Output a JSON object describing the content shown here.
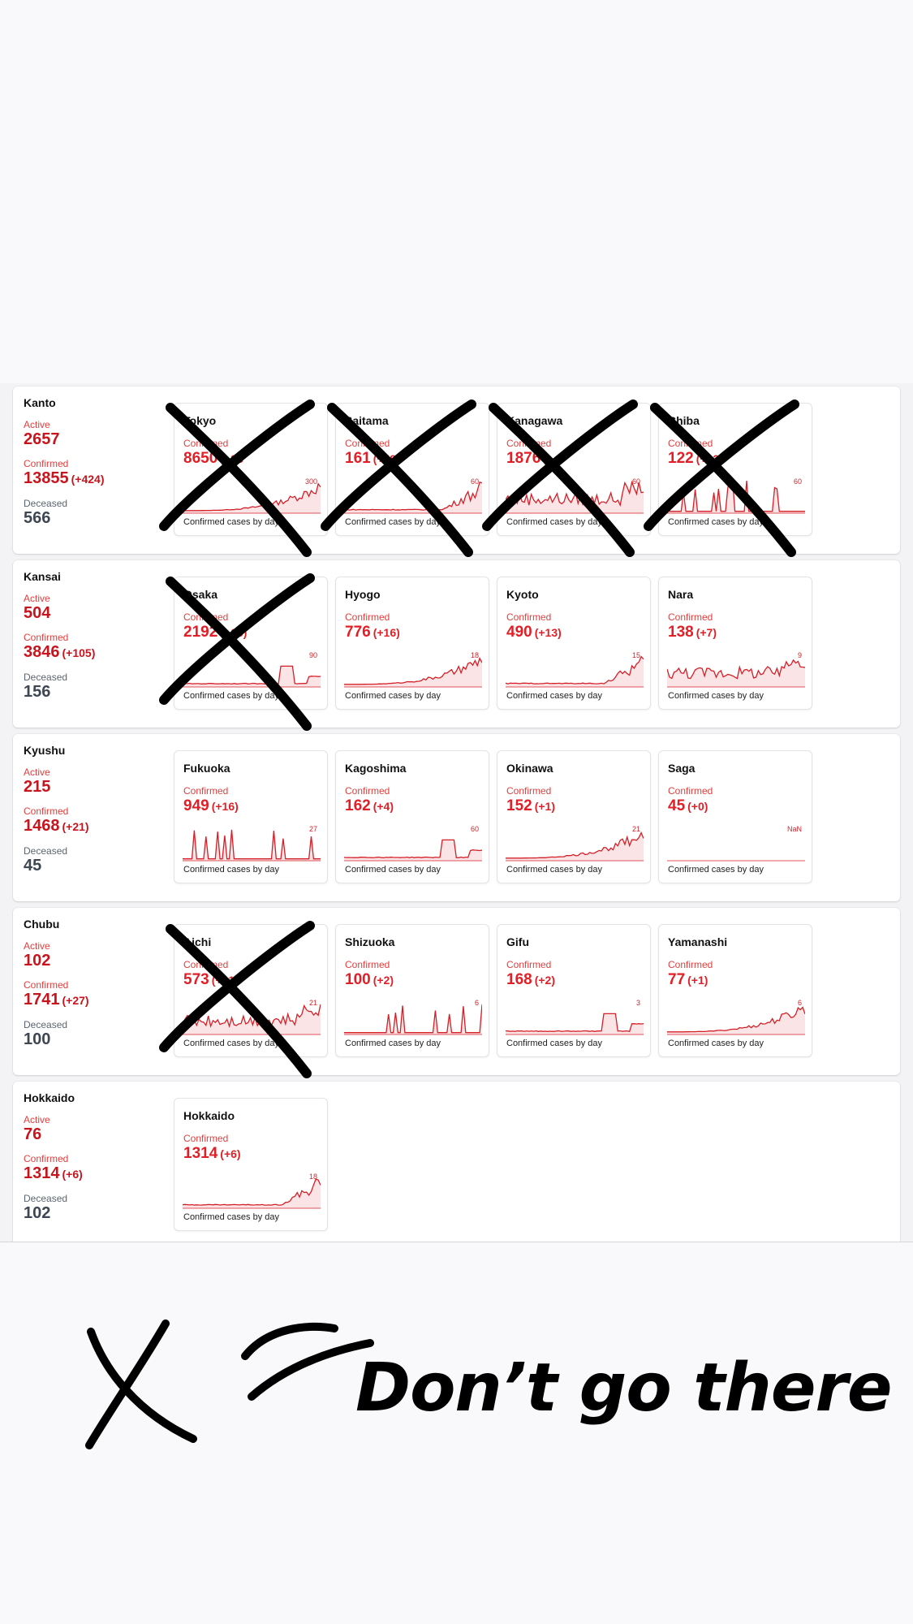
{
  "caption_label": "Confirmed cases by day",
  "confirmed_label": "Confirmed",
  "tagline": "Don’t go there",
  "colors": {
    "accent": "#e21f26",
    "dark_value": "#3d4652",
    "ink": "#000000"
  },
  "regions": [
    {
      "name": "Kanto",
      "active": {
        "label": "Active",
        "value": "2657"
      },
      "confirmed": {
        "label": "Confirmed",
        "value": "13855",
        "delta": "(+424)"
      },
      "deceased": {
        "label": "Deceased",
        "value": "566"
      },
      "prefectures": [
        {
          "name": "Tokyo",
          "confirmed": "8650",
          "delta": "(+28",
          "ymax": "300",
          "crossed": true
        },
        {
          "name": "Saitama",
          "confirmed": "161",
          "delta": "(+49)",
          "ymax": "60",
          "crossed": true
        },
        {
          "name": "Kanagawa",
          "confirmed": "1876",
          "delta": "(+4",
          "ymax": "60",
          "crossed": true
        },
        {
          "name": "Chiba",
          "confirmed": "122",
          "delta": "(+32)",
          "ymax": "60",
          "crossed": true
        }
      ]
    },
    {
      "name": "Kansai",
      "active": {
        "label": "Active",
        "value": "504"
      },
      "confirmed": {
        "label": "Confirmed",
        "value": "3846",
        "delta": "(+105)"
      },
      "deceased": {
        "label": "Deceased",
        "value": "156"
      },
      "prefectures": [
        {
          "name": "Osaka",
          "confirmed": "2192",
          "delta": "(+66)",
          "ymax": "90",
          "crossed": true
        },
        {
          "name": "Hyogo",
          "confirmed": "776",
          "delta": "(+16)",
          "ymax": "18",
          "crossed": false
        },
        {
          "name": "Kyoto",
          "confirmed": "490",
          "delta": "(+13)",
          "ymax": "15",
          "crossed": false
        },
        {
          "name": "Nara",
          "confirmed": "138",
          "delta": "(+7)",
          "ymax": "9",
          "crossed": false
        }
      ]
    },
    {
      "name": "Kyushu",
      "active": {
        "label": "Active",
        "value": "215"
      },
      "confirmed": {
        "label": "Confirmed",
        "value": "1468",
        "delta": "(+21)"
      },
      "deceased": {
        "label": "Deceased",
        "value": "45"
      },
      "prefectures": [
        {
          "name": "Fukuoka",
          "confirmed": "949",
          "delta": "(+16)",
          "ymax": "27",
          "crossed": false
        },
        {
          "name": "Kagoshima",
          "confirmed": "162",
          "delta": "(+4)",
          "ymax": "60",
          "crossed": false
        },
        {
          "name": "Okinawa",
          "confirmed": "152",
          "delta": "(+1)",
          "ymax": "21",
          "crossed": false
        },
        {
          "name": "Saga",
          "confirmed": "45",
          "delta": "(+0)",
          "ymax": "NaN",
          "crossed": false
        }
      ]
    },
    {
      "name": "Chubu",
      "active": {
        "label": "Active",
        "value": "102"
      },
      "confirmed": {
        "label": "Confirmed",
        "value": "1741",
        "delta": "(+27)"
      },
      "deceased": {
        "label": "Deceased",
        "value": "100"
      },
      "prefectures": [
        {
          "name": "Aichi",
          "confirmed": "573",
          "delta": "(+21",
          "ymax": "21",
          "crossed": true
        },
        {
          "name": "Shizuoka",
          "confirmed": "100",
          "delta": "(+2)",
          "ymax": "6",
          "crossed": false
        },
        {
          "name": "Gifu",
          "confirmed": "168",
          "delta": "(+2)",
          "ymax": "3",
          "crossed": false
        },
        {
          "name": "Yamanashi",
          "confirmed": "77",
          "delta": "(+1)",
          "ymax": "6",
          "crossed": false
        }
      ]
    },
    {
      "name": "Hokkaido",
      "active": {
        "label": "Active",
        "value": "76"
      },
      "confirmed": {
        "label": "Confirmed",
        "value": "1314",
        "delta": "(+6)"
      },
      "deceased": {
        "label": "Deceased",
        "value": "102"
      },
      "prefectures": [
        {
          "name": "Hokkaido",
          "confirmed": "1314",
          "delta": "(+6)",
          "ymax": "18",
          "crossed": false
        }
      ]
    }
  ]
}
